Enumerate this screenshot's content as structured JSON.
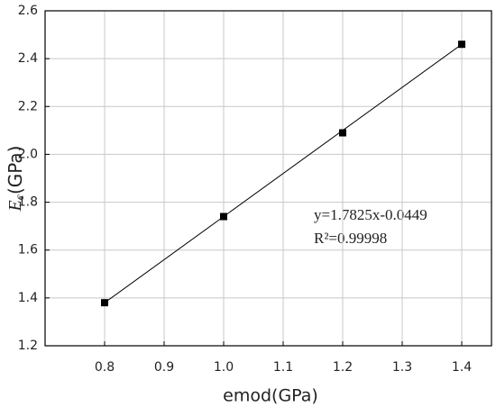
{
  "chart_data": {
    "type": "scatter",
    "x_label": "emod(GPa)",
    "y_label": {
      "symbol": "E",
      "subscript": "c",
      "unit": "(GPa)"
    },
    "annotations": [
      "y=1.7825x-0.0449",
      "R²=0.99998"
    ],
    "x": [
      0.8,
      1.0,
      1.2,
      1.4
    ],
    "series": [
      {
        "name": "Ec",
        "color": "#000000",
        "values": [
          1.38,
          1.74,
          2.09,
          2.46
        ]
      }
    ],
    "fit_line": true,
    "xlim": [
      0.7,
      1.45
    ],
    "xticks": [
      0.8,
      0.9,
      {
        "value": 1,
        "label": "1.0"
      },
      1.1,
      1.2,
      1.3,
      1.4
    ],
    "ylim": [
      1.2,
      2.6
    ],
    "yticks": [
      1.2,
      1.4,
      1.6,
      1.8,
      {
        "value": 2,
        "label": "2.0"
      },
      2.2,
      2.4,
      2.6
    ],
    "grid": true
  }
}
